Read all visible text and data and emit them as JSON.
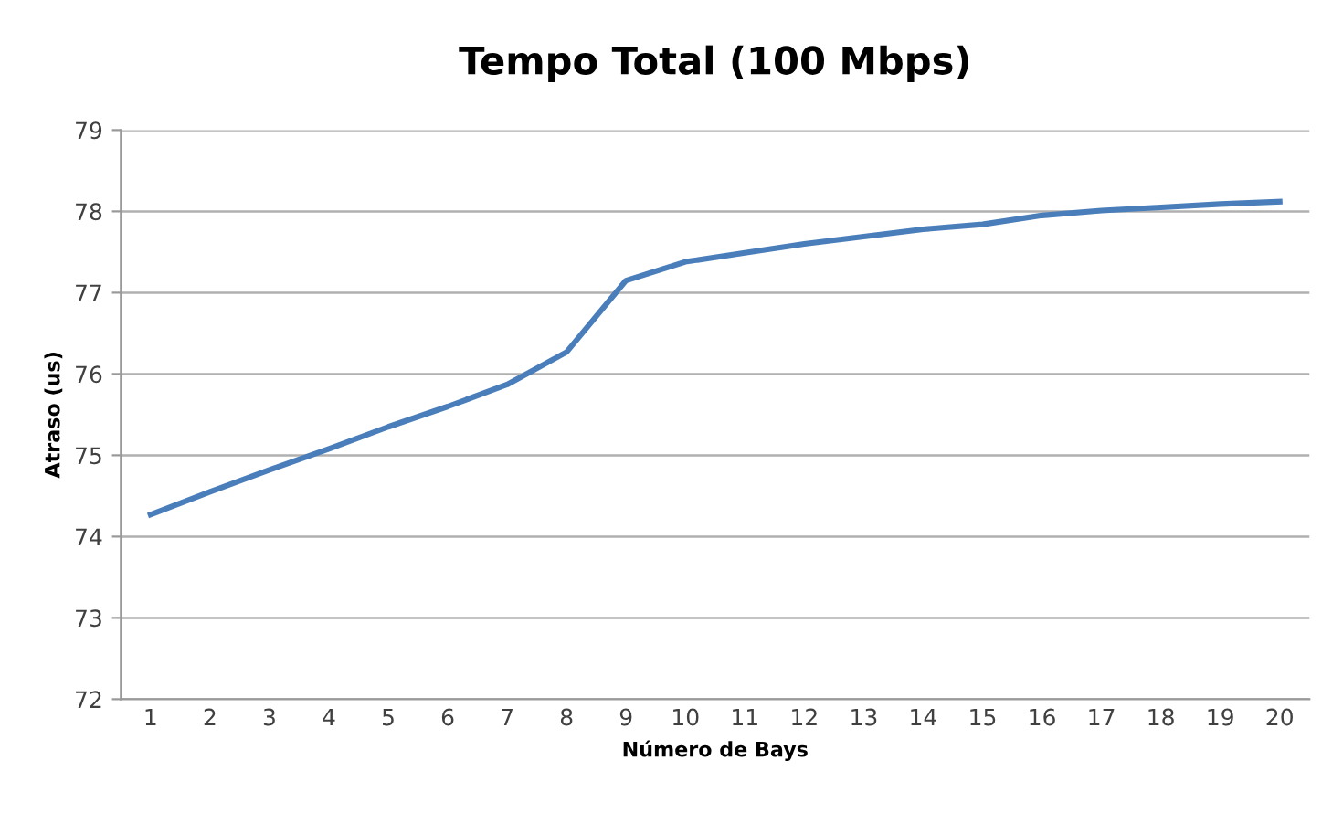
{
  "chart_data": {
    "type": "line",
    "title": "Tempo Total (100 Mbps)",
    "xlabel": "Número de Bays",
    "ylabel": "Atraso (us)",
    "categories": [
      "1",
      "2",
      "3",
      "4",
      "5",
      "6",
      "7",
      "8",
      "9",
      "10",
      "11",
      "12",
      "13",
      "14",
      "15",
      "16",
      "17",
      "18",
      "19",
      "20"
    ],
    "series": [
      {
        "color": "#4a7ebb",
        "values": [
          74.27,
          74.55,
          74.82,
          75.08,
          75.35,
          75.6,
          75.87,
          76.27,
          77.15,
          77.38,
          77.49,
          77.6,
          77.69,
          77.78,
          77.84,
          77.95,
          78.01,
          78.05,
          78.09,
          78.12
        ]
      }
    ],
    "ylim": [
      72,
      79
    ],
    "yticks": [
      72,
      73,
      74,
      75,
      76,
      77,
      78,
      79
    ],
    "grid": "y",
    "marker": "none",
    "line_style": "solid"
  }
}
